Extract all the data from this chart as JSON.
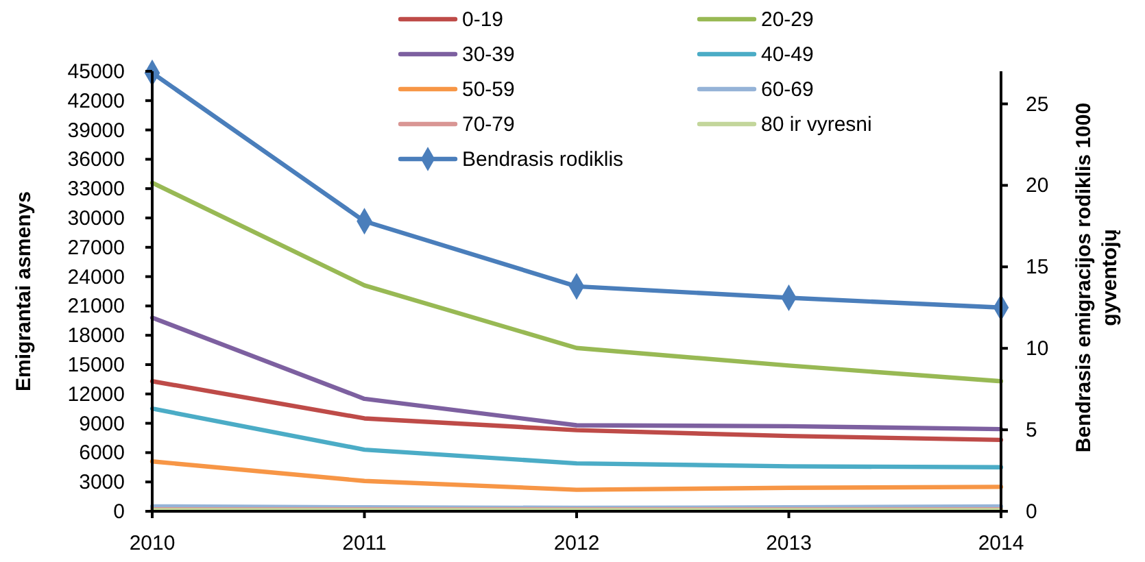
{
  "chart_data": {
    "type": "line",
    "ylabel": "Emigrantai asmenys",
    "y2label": "Bendrasis emigracijos rodiklis  1000 gyventojų",
    "x": [
      2010,
      2011,
      2012,
      2013,
      2014
    ],
    "xlim": [
      2010,
      2014
    ],
    "xticks": [
      2010,
      2011,
      2012,
      2013,
      2014
    ],
    "ylim": [
      0,
      45000
    ],
    "yticks": [
      0,
      3000,
      6000,
      9000,
      12000,
      15000,
      18000,
      21000,
      24000,
      27000,
      30000,
      33000,
      36000,
      39000,
      42000,
      45000
    ],
    "y2lim": [
      0,
      27
    ],
    "y2ticks": [
      0,
      5,
      10,
      15,
      20,
      25
    ],
    "grid": false,
    "legend": "top",
    "marker": "none",
    "line_style": "solid",
    "series": [
      {
        "name": "0-19",
        "color": "#be4b48",
        "values": [
          13300,
          9500,
          8300,
          7700,
          7300
        ]
      },
      {
        "name": "20-29",
        "color": "#98b954",
        "values": [
          33600,
          23100,
          16700,
          14900,
          13300
        ]
      },
      {
        "name": "30-39",
        "color": "#7d60a0",
        "values": [
          19800,
          11500,
          8800,
          8700,
          8400
        ]
      },
      {
        "name": "40-49",
        "color": "#4bacc6",
        "values": [
          10500,
          6300,
          4900,
          4600,
          4500
        ]
      },
      {
        "name": "50-59",
        "color": "#f79646",
        "values": [
          5100,
          3100,
          2200,
          2400,
          2500
        ]
      },
      {
        "name": "60-69",
        "color": "#95b3d7",
        "values": [
          500,
          400,
          350,
          400,
          500
        ]
      },
      {
        "name": "70-79",
        "color": "#d99694",
        "values": [
          200,
          200,
          200,
          200,
          200
        ]
      },
      {
        "name": "80 ir vyresni",
        "color": "#c3d69b",
        "values": [
          100,
          100,
          100,
          100,
          100
        ]
      },
      {
        "name": "Bendrasis rodiklis",
        "color": "#4a7ebb",
        "axis": "y2",
        "marker": "diamond",
        "values": [
          26.9,
          17.8,
          13.8,
          13.1,
          12.5
        ]
      }
    ]
  }
}
